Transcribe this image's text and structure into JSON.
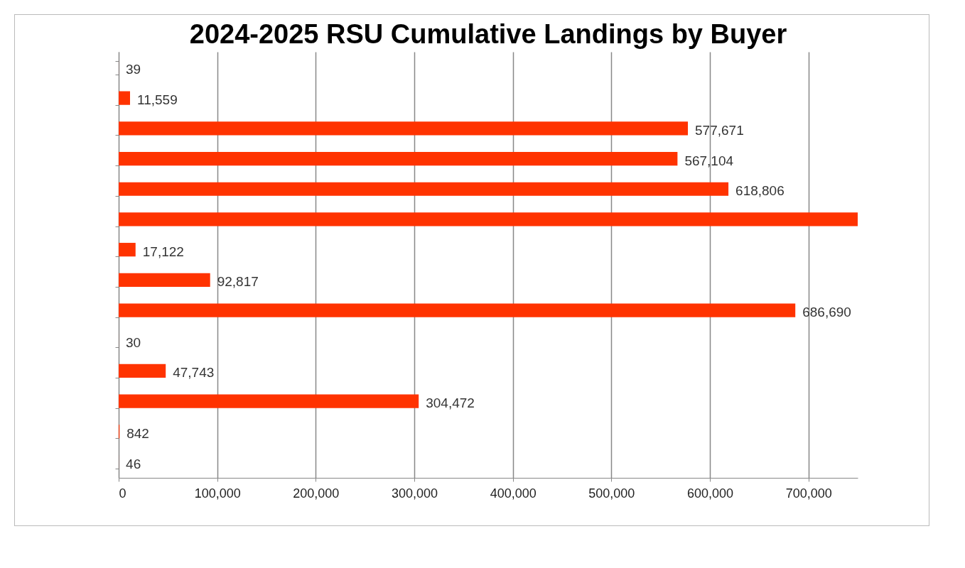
{
  "chart_data": {
    "type": "bar",
    "orientation": "horizontal",
    "title": "2024-2025 RSU Cumulative Landings by Buyer",
    "categories": [
      null,
      null,
      null,
      null,
      null,
      null,
      null,
      null,
      null,
      null,
      null,
      null,
      null,
      null
    ],
    "values": [
      39,
      11559,
      577671,
      567104,
      618806,
      750000,
      17122,
      92817,
      686690,
      30,
      47743,
      304472,
      842,
      46
    ],
    "value_labels": [
      "39",
      "11,559",
      "577,671",
      "567,104",
      "618,806",
      null,
      "17,122",
      "92,817",
      "686,690",
      "30",
      "47,743",
      "304,472",
      "842",
      "46"
    ],
    "color": "#ff3300",
    "xlim": [
      0,
      750000
    ],
    "xticks": [
      0,
      {
        "value": 100000,
        "label": "100,000"
      },
      {
        "value": 200000,
        "label": "200,000"
      },
      {
        "value": 300000,
        "label": "300,000"
      },
      {
        "value": 400000,
        "label": "400,000"
      },
      {
        "value": 500000,
        "label": "500,000"
      },
      {
        "value": 600000,
        "label": "600,000"
      },
      {
        "value": 700000,
        "label": "700,000"
      }
    ],
    "grid": "x",
    "tick_labels": "x"
  }
}
